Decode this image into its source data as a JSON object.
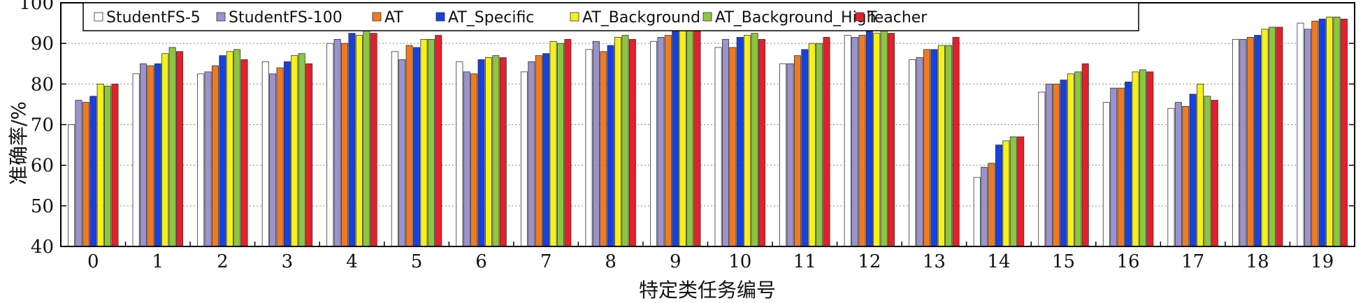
{
  "chart_data": {
    "type": "bar",
    "xlabel": "特定类任务编号",
    "ylabel": "准确率/%",
    "ylim": [
      40,
      100
    ],
    "yticks": [
      40,
      50,
      60,
      70,
      80,
      90,
      100
    ],
    "grid": "horizontal dotted",
    "legend_position": "top",
    "categories": [
      "0",
      "1",
      "2",
      "3",
      "4",
      "5",
      "6",
      "7",
      "8",
      "9",
      "10",
      "11",
      "12",
      "13",
      "14",
      "15",
      "16",
      "17",
      "18",
      "19"
    ],
    "series": [
      {
        "name": "StudentFS-5",
        "color": "#ffffff",
        "values": [
          70.0,
          82.5,
          82.5,
          85.5,
          90.0,
          88.0,
          85.5,
          83.0,
          88.5,
          90.5,
          89.0,
          85.0,
          92.0,
          86.0,
          57.0,
          78.0,
          75.5,
          74.0,
          91.0,
          95.0
        ]
      },
      {
        "name": "StudentFS-100",
        "color": "#9b93cc",
        "values": [
          76.0,
          85.0,
          83.0,
          82.5,
          91.0,
          86.0,
          83.0,
          85.5,
          90.5,
          91.5,
          91.0,
          85.0,
          91.5,
          86.5,
          59.5,
          80.0,
          79.0,
          75.5,
          91.0,
          93.5
        ]
      },
      {
        "name": "AT",
        "color": "#f07a22",
        "values": [
          75.5,
          84.5,
          84.5,
          84.0,
          90.0,
          89.5,
          82.5,
          87.0,
          88.0,
          92.0,
          89.0,
          87.0,
          92.0,
          88.5,
          60.5,
          80.0,
          79.0,
          74.5,
          91.5,
          95.5
        ]
      },
      {
        "name": "AT_Specific",
        "color": "#1641e0",
        "values": [
          77.0,
          85.0,
          87.0,
          85.5,
          92.5,
          89.0,
          86.0,
          87.5,
          89.5,
          94.0,
          91.5,
          88.5,
          93.0,
          88.5,
          65.0,
          81.0,
          80.5,
          77.5,
          92.0,
          96.0
        ]
      },
      {
        "name": "AT_Background",
        "color": "#f5f219",
        "values": [
          80.0,
          87.5,
          88.0,
          87.0,
          92.0,
          91.0,
          86.5,
          90.5,
          91.5,
          94.5,
          92.0,
          90.0,
          92.5,
          89.5,
          66.0,
          82.5,
          83.0,
          80.0,
          93.5,
          96.5
        ]
      },
      {
        "name": "AT_Background_High",
        "color": "#8dc63f",
        "values": [
          79.5,
          89.0,
          88.5,
          87.5,
          93.5,
          91.0,
          87.0,
          90.0,
          92.0,
          94.0,
          92.5,
          90.0,
          93.5,
          89.5,
          67.0,
          83.0,
          83.5,
          77.0,
          94.0,
          96.5
        ]
      },
      {
        "name": "Teacher",
        "color": "#e5202a",
        "values": [
          80.0,
          88.0,
          86.0,
          85.0,
          92.5,
          92.0,
          86.5,
          91.0,
          91.0,
          93.5,
          91.0,
          91.5,
          92.5,
          91.5,
          67.0,
          85.0,
          83.0,
          76.0,
          94.0,
          96.0
        ]
      }
    ]
  }
}
